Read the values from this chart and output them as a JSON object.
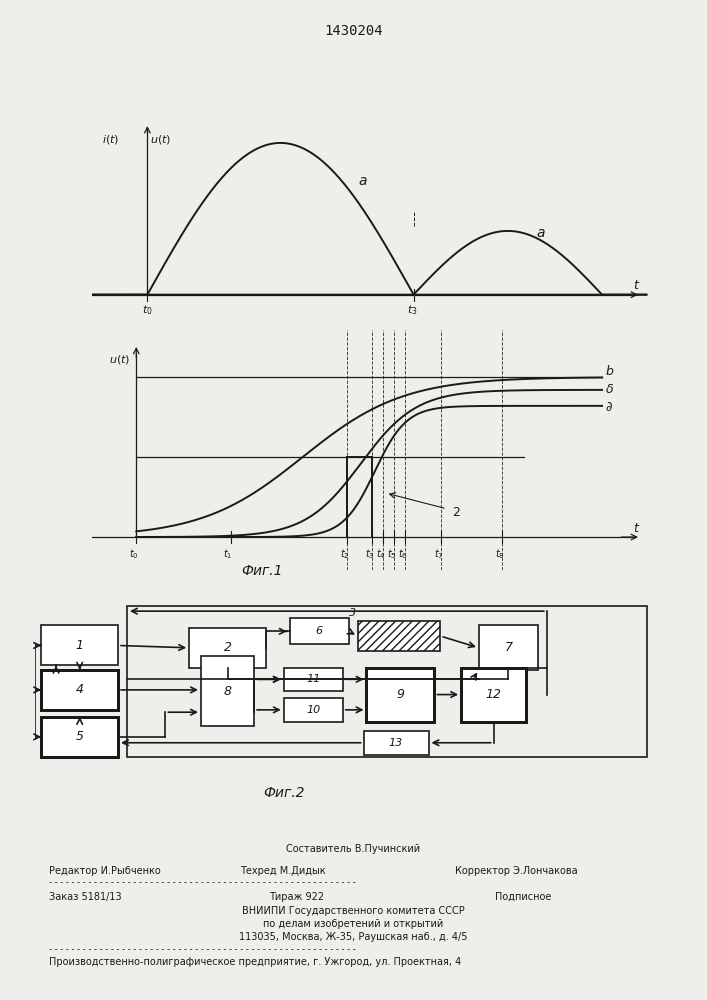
{
  "title": "1430204",
  "fig1_label": "Фиг.1",
  "fig2_label": "Фиг.2",
  "bg": "#f0eeea",
  "lc": "#1a1a1a"
}
